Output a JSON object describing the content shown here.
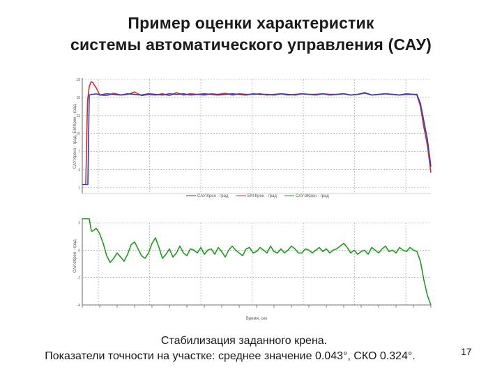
{
  "slide": {
    "title_line1": "Пример оценки характеристик",
    "title_line2": "системы автоматического управления (САУ)",
    "caption_line1": "Стабилизация заданного крена.",
    "caption_line2": "Показатели точности на участке: среднее значение 0.043°, СКО 0.324°.",
    "page_number": "17"
  },
  "colors": {
    "sau": "#2a3bd8",
    "em": "#d42a2a",
    "dgamma": "#1f9a1f",
    "grid": "#9a9a9a",
    "axis": "#666666"
  },
  "chart_data": [
    {
      "type": "line",
      "title": "",
      "ylabel": "САУ:Кренз - град, ЕМ:Крен - град",
      "ylim": [
        0,
        19
      ],
      "yticks": [
        1,
        4,
        7,
        10,
        13,
        16,
        19
      ],
      "grid": true,
      "legend": [
        "САУ:Крен - град",
        "ЕМ:Крен - град",
        "САУ:dКрен - град"
      ],
      "legend_position": "bottom-center",
      "series": [
        {
          "name": "САУ:Крен - град",
          "x": [
            0,
            0.5,
            1,
            1.5,
            2,
            2.5,
            3,
            3.5,
            4,
            5,
            7,
            9,
            11,
            13,
            15,
            17,
            19,
            21,
            23,
            25,
            27,
            29,
            31,
            33,
            35,
            37,
            39,
            41,
            43,
            45,
            47,
            49,
            51,
            53,
            55,
            57,
            59,
            61,
            63,
            65,
            67,
            69,
            71,
            73,
            75,
            77,
            79,
            81,
            83,
            85,
            87,
            89,
            91,
            93,
            95,
            96,
            97,
            98,
            99,
            100
          ],
          "values": [
            1.5,
            1.5,
            1.5,
            15.4,
            17.8,
            18.6,
            18.5,
            18.0,
            17.6,
            16.4,
            16.3,
            16.7,
            16.4,
            16.5,
            16.9,
            16.3,
            16.5,
            16.4,
            16.6,
            16.3,
            16.8,
            16.4,
            16.6,
            16.5,
            16.4,
            16.6,
            16.5,
            16.7,
            16.4,
            16.6,
            16.5,
            16.5,
            16.6,
            16.4,
            16.5,
            16.6,
            16.4,
            16.5,
            16.6,
            16.5,
            16.4,
            16.6,
            16.5,
            16.5,
            16.6,
            16.4,
            16.5,
            16.7,
            16.4,
            16.5,
            16.6,
            16.5,
            16.4,
            16.5,
            16.5,
            16.4,
            14.5,
            11.0,
            8.0,
            3.5
          ]
        },
        {
          "name": "ЕМ:Крен - град",
          "x": [
            0,
            1,
            1.6,
            2,
            2.5,
            3,
            4,
            5,
            7,
            9,
            11,
            13,
            15,
            17,
            19,
            21,
            23,
            25,
            27,
            29,
            31,
            33,
            35,
            37,
            39,
            41,
            43,
            45,
            47,
            49,
            51,
            53,
            55,
            57,
            59,
            61,
            63,
            65,
            67,
            69,
            71,
            73,
            75,
            77,
            79,
            81,
            83,
            85,
            87,
            89,
            91,
            93,
            95,
            96,
            97,
            98,
            99,
            100
          ],
          "values": [
            1.5,
            1.5,
            1.5,
            16.4,
            16.5,
            16.5,
            16.6,
            16.4,
            16.6,
            16.5,
            16.4,
            16.6,
            16.5,
            16.4,
            16.6,
            16.5,
            16.4,
            16.6,
            16.5,
            16.6,
            16.4,
            16.5,
            16.6,
            16.5,
            16.4,
            16.5,
            16.6,
            16.5,
            16.4,
            16.6,
            16.5,
            16.5,
            16.4,
            16.6,
            16.5,
            16.4,
            16.6,
            16.5,
            16.5,
            16.6,
            16.4,
            16.5,
            16.6,
            16.4,
            16.5,
            16.8,
            16.4,
            16.5,
            16.6,
            16.5,
            16.4,
            16.6,
            16.5,
            16.5,
            15.0,
            12.0,
            9.0,
            4.5
          ]
        }
      ],
      "tick_labels": [],
      "xlabel": ""
    },
    {
      "type": "line",
      "title": "",
      "ylabel": "САУ:dКрен - град",
      "ylim": [
        -4,
        2
      ],
      "yticks": [
        -4,
        -2,
        0,
        2
      ],
      "grid": true,
      "series": [
        {
          "name": "САУ:dКрен - град",
          "x": [
            0,
            1,
            2,
            2.6,
            3,
            4,
            5,
            6,
            7,
            8,
            9,
            10,
            11,
            12,
            13,
            14,
            15,
            16,
            17,
            18,
            19,
            20,
            21,
            22,
            23,
            24,
            25,
            26,
            27,
            28,
            29,
            30,
            31,
            32,
            33,
            34,
            35,
            36,
            37,
            38,
            39,
            40,
            41,
            42,
            43,
            44,
            45,
            46,
            47,
            48,
            49,
            50,
            51,
            52,
            53,
            54,
            55,
            56,
            57,
            58,
            59,
            60,
            61,
            62,
            63,
            64,
            65,
            66,
            67,
            68,
            69,
            70,
            71,
            72,
            73,
            74,
            75,
            76,
            77,
            78,
            79,
            80,
            81,
            82,
            83,
            84,
            85,
            86,
            87,
            88,
            89,
            90,
            91,
            92,
            93,
            94,
            95,
            96,
            97,
            98,
            99,
            100
          ],
          "values": [
            2.3,
            2.3,
            2.3,
            1.4,
            1.4,
            1.6,
            1.2,
            0.5,
            -0.4,
            -0.9,
            -0.6,
            -0.2,
            -0.5,
            -0.8,
            -0.3,
            0.4,
            0.6,
            0.1,
            -0.4,
            -0.6,
            -0.2,
            0.5,
            0.9,
            0.2,
            -0.6,
            -0.3,
            0.1,
            -0.5,
            -0.2,
            0.3,
            -0.2,
            -0.4,
            0.1,
            0.0,
            -0.2,
            0.2,
            -0.3,
            0.0,
            0.1,
            -0.3,
            0.2,
            -0.1,
            -0.5,
            0.0,
            0.3,
            0.0,
            -0.2,
            -0.4,
            0.1,
            0.2,
            -0.2,
            -0.1,
            0.2,
            0.0,
            -0.2,
            0.3,
            -0.1,
            -0.2,
            0.1,
            -0.2,
            0.0,
            0.3,
            0.1,
            -0.2,
            -0.2,
            0.1,
            0.0,
            -0.2,
            0.0,
            0.2,
            -0.1,
            0.1,
            -0.2,
            0.0,
            0.1,
            0.3,
            0.5,
            0.2,
            -0.2,
            0.0,
            -0.3,
            -0.1,
            0.0,
            -0.3,
            0.2,
            0.0,
            -0.2,
            0.1,
            0.3,
            -0.1,
            0.0,
            -0.2,
            0.2,
            0.0,
            -0.1,
            0.2,
            0.0,
            -0.1,
            -0.8,
            -2.2,
            -3.3,
            -4.0
          ]
        }
      ],
      "xlabel": "Время, сек",
      "tick_labels": []
    }
  ]
}
